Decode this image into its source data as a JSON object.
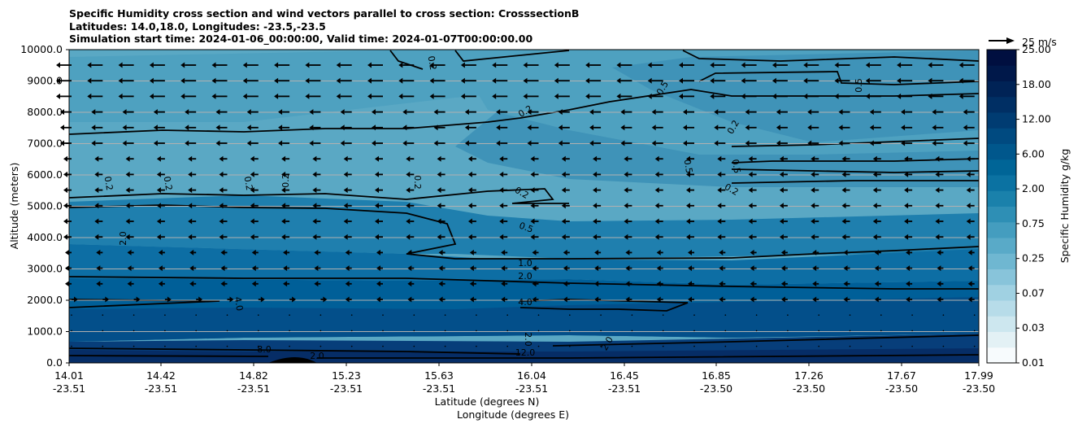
{
  "title_lines": [
    "Specific Humidity cross section and wind vectors parallel to cross section: CrosssectionB",
    "Latitudes: 14.0,18.0, Longitudes: -23.5,-23.5",
    "Simulation start time: 2024-01-06_00:00:00, Valid time: 2024-01-07T00:00:00.00"
  ],
  "chart_data": {
    "type": "contourf",
    "title": "Specific Humidity cross section and wind vectors parallel to cross section: CrosssectionB",
    "ylabel": "Altitude (meters)",
    "xlabel_lines": [
      "Latitude (degrees N)",
      "Longitude (degrees E)"
    ],
    "ylim": [
      0,
      10000
    ],
    "y_ticks": [
      "0.0",
      "1000.0",
      "2000.0",
      "3000.0",
      "4000.0",
      "5000.0",
      "6000.0",
      "7000.0",
      "8000.0",
      "9000.0",
      "10000.0"
    ],
    "x_ticks": [
      {
        "lat": "14.01",
        "lon": "-23.51"
      },
      {
        "lat": "14.42",
        "lon": "-23.51"
      },
      {
        "lat": "14.82",
        "lon": "-23.51"
      },
      {
        "lat": "15.23",
        "lon": "-23.51"
      },
      {
        "lat": "15.63",
        "lon": "-23.51"
      },
      {
        "lat": "16.04",
        "lon": "-23.51"
      },
      {
        "lat": "16.45",
        "lon": "-23.51"
      },
      {
        "lat": "16.85",
        "lon": "-23.50"
      },
      {
        "lat": "17.26",
        "lon": "-23.50"
      },
      {
        "lat": "17.67",
        "lon": "-23.50"
      },
      {
        "lat": "17.99",
        "lon": "-23.50"
      }
    ],
    "colorbar": {
      "label": "Specific Humidity g/kg",
      "ticks": [
        "0.01",
        "0.03",
        "0.07",
        "0.25",
        "0.75",
        "2.00",
        "6.00",
        "12.00",
        "18.00",
        "25.00"
      ]
    },
    "quiver_key": "25 m/s",
    "contour_labels": [
      "0.2",
      "0.5",
      "1.0",
      "2.0",
      "4.0",
      "8.0",
      "12.0"
    ]
  }
}
